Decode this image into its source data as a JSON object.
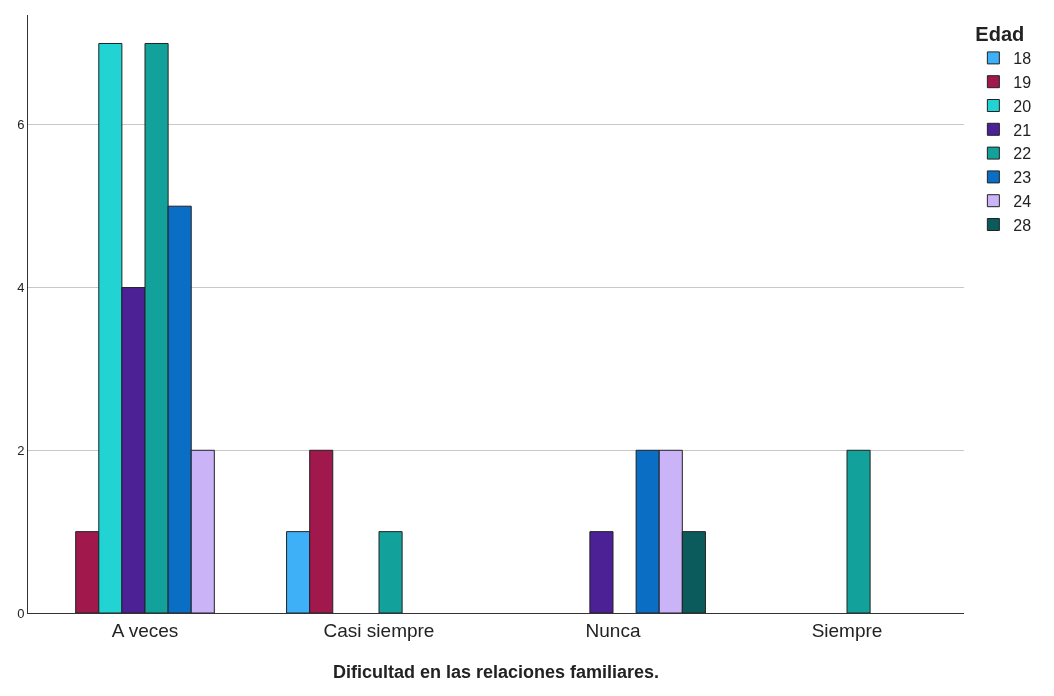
{
  "chart_data": {
    "type": "bar",
    "xlabel": "Dificultad en las relaciones familiares.",
    "legend_title": "Edad",
    "categories": [
      "A veces",
      "Casi siempre",
      "Nunca",
      "Siempre"
    ],
    "series": [
      {
        "name": "18",
        "color": "#3db0f7",
        "values": [
          null,
          1,
          null,
          null
        ]
      },
      {
        "name": "19",
        "color": "#a0184c",
        "values": [
          1,
          2,
          null,
          null
        ]
      },
      {
        "name": "20",
        "color": "#22d3d3",
        "values": [
          7,
          null,
          null,
          null
        ]
      },
      {
        "name": "21",
        "color": "#4c2196",
        "values": [
          4,
          null,
          1,
          null
        ]
      },
      {
        "name": "22",
        "color": "#13a19c",
        "values": [
          7,
          1,
          null,
          2
        ]
      },
      {
        "name": "23",
        "color": "#0a6fc4",
        "values": [
          5,
          null,
          2,
          null
        ]
      },
      {
        "name": "24",
        "color": "#cbb3f7",
        "values": [
          2,
          null,
          2,
          null
        ]
      },
      {
        "name": "28",
        "color": "#0b5b5c",
        "values": [
          null,
          null,
          1,
          null
        ]
      }
    ],
    "ylim": [
      0,
      7.35
    ],
    "yticks": [
      0,
      2,
      4,
      6
    ],
    "grid": "y",
    "legend": "top right"
  }
}
